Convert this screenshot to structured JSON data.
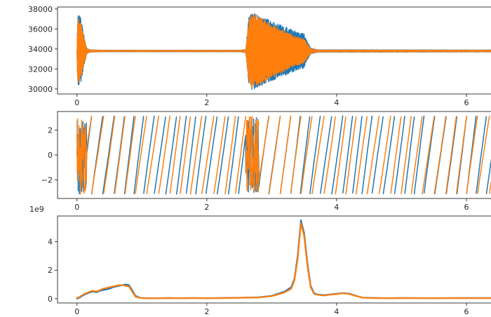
{
  "figure": {
    "background": "#ffffff"
  },
  "colors": {
    "series_1": "#1f77b4",
    "series_2": "#ff7f0e",
    "axis": "#262626"
  },
  "chart_data": [
    {
      "type": "line",
      "title": "",
      "xlabel": "",
      "ylabel": "",
      "xlim": [
        -0.3,
        6.4
      ],
      "ylim": [
        29500,
        38200
      ],
      "xticks": [
        0,
        2,
        4,
        6
      ],
      "xtick_labels": [
        "0",
        "2",
        "4",
        "6"
      ],
      "yticks": [
        30000,
        32000,
        34000,
        36000,
        38000
      ],
      "ytick_labels": [
        "30000",
        "32000",
        "34000",
        "36000",
        "38000"
      ],
      "offset_label": "",
      "grid": false,
      "legend": "none",
      "baseline": 33800,
      "series": [
        {
          "color": "#1f77b4",
          "envelope": {
            "x": [
              0,
              0.01,
              0.05,
              0.1,
              0.15,
              0.2,
              0.4,
              2.5,
              2.6,
              2.65,
              2.7,
              3.0,
              3.3,
              3.5,
              3.55,
              3.6,
              3.7,
              6.4
            ],
            "amp": [
              80,
              3600,
              3500,
              1800,
              300,
              120,
              80,
              80,
              150,
              3500,
              3900,
              3000,
              2200,
              1700,
              900,
              300,
              120,
              100
            ]
          }
        },
        {
          "color": "#ff7f0e",
          "envelope": {
            "x": [
              0,
              0.01,
              0.05,
              0.1,
              0.15,
              0.2,
              0.4,
              2.5,
              2.6,
              2.65,
              2.7,
              3.0,
              3.3,
              3.5,
              3.55,
              3.6,
              3.7,
              6.4
            ],
            "amp": [
              60,
              3300,
              3200,
              1600,
              250,
              100,
              60,
              60,
              120,
              3300,
              3800,
              2700,
              1700,
              1200,
              700,
              250,
              90,
              70
            ]
          }
        }
      ]
    },
    {
      "type": "line",
      "title": "",
      "xlabel": "",
      "ylabel": "",
      "xlim": [
        -0.3,
        6.4
      ],
      "ylim": [
        -3.5,
        3.5
      ],
      "xticks": [
        0,
        2,
        4,
        6
      ],
      "xtick_labels": [
        "0",
        "2",
        "4",
        "6"
      ],
      "yticks": [
        -2,
        0,
        2
      ],
      "ytick_labels": [
        "−2",
        "0",
        "2"
      ],
      "offset_label": "",
      "grid": false,
      "legend": "none",
      "wrap_range": [
        -3.14159,
        3.14159
      ],
      "series": [
        {
          "color": "#1f77b4",
          "sawtooth_period": 0.16,
          "phase": 0.0,
          "wiggle": 0.55
        },
        {
          "color": "#ff7f0e",
          "sawtooth_period": 0.17,
          "phase": 0.9,
          "wiggle": 0.45
        }
      ]
    },
    {
      "type": "line",
      "title": "",
      "xlabel": "",
      "ylabel": "",
      "xlim": [
        -0.3,
        6.4
      ],
      "ylim": [
        -0.3,
        5.8
      ],
      "xticks": [
        0,
        2,
        4,
        6
      ],
      "xtick_labels": [
        "0",
        "2",
        "4",
        "6"
      ],
      "yticks": [
        0,
        2,
        4
      ],
      "ytick_labels": [
        "0",
        "2",
        "4"
      ],
      "offset_label": "1e9",
      "grid": false,
      "legend": "none",
      "series": [
        {
          "color": "#1f77b4",
          "x": [
            0,
            0.05,
            0.1,
            0.15,
            0.2,
            0.25,
            0.3,
            0.35,
            0.4,
            0.45,
            0.5,
            0.55,
            0.6,
            0.65,
            0.7,
            0.75,
            0.8,
            0.85,
            0.9,
            0.95,
            1.0,
            1.2,
            1.4,
            1.6,
            1.8,
            2.0,
            2.2,
            2.4,
            2.6,
            2.8,
            2.9,
            3.0,
            3.1,
            3.2,
            3.3,
            3.35,
            3.4,
            3.45,
            3.5,
            3.55,
            3.6,
            3.65,
            3.7,
            3.8,
            3.9,
            4.0,
            4.1,
            4.2,
            4.3,
            4.4,
            4.6,
            4.8,
            5.0,
            5.5,
            6.0,
            6.4
          ],
          "y": [
            0.0,
            0.1,
            0.25,
            0.35,
            0.45,
            0.5,
            0.45,
            0.55,
            0.6,
            0.65,
            0.7,
            0.8,
            0.85,
            0.9,
            0.95,
            1.0,
            0.95,
            0.6,
            0.2,
            0.1,
            0.05,
            0.03,
            0.05,
            0.04,
            0.05,
            0.04,
            0.05,
            0.06,
            0.08,
            0.1,
            0.15,
            0.2,
            0.35,
            0.5,
            0.8,
            1.4,
            3.0,
            5.5,
            4.6,
            2.5,
            0.9,
            0.4,
            0.3,
            0.25,
            0.3,
            0.35,
            0.4,
            0.35,
            0.2,
            0.08,
            0.05,
            0.04,
            0.05,
            0.04,
            0.05,
            0.05
          ]
        },
        {
          "color": "#ff7f0e",
          "x": [
            0,
            0.05,
            0.1,
            0.15,
            0.2,
            0.25,
            0.3,
            0.35,
            0.4,
            0.45,
            0.5,
            0.55,
            0.6,
            0.65,
            0.7,
            0.75,
            0.8,
            0.85,
            0.9,
            0.95,
            1.0,
            1.2,
            1.4,
            1.6,
            1.8,
            2.0,
            2.2,
            2.4,
            2.6,
            2.8,
            2.9,
            3.0,
            3.1,
            3.2,
            3.3,
            3.35,
            3.4,
            3.45,
            3.5,
            3.55,
            3.6,
            3.65,
            3.7,
            3.8,
            3.9,
            4.0,
            4.1,
            4.2,
            4.3,
            4.4,
            4.6,
            4.8,
            5.0,
            5.5,
            6.0,
            6.4
          ],
          "y": [
            0.05,
            0.15,
            0.3,
            0.4,
            0.5,
            0.55,
            0.5,
            0.6,
            0.7,
            0.75,
            0.8,
            0.85,
            0.9,
            0.95,
            0.95,
            0.9,
            0.85,
            0.5,
            0.15,
            0.08,
            0.04,
            0.03,
            0.04,
            0.04,
            0.04,
            0.04,
            0.04,
            0.05,
            0.07,
            0.09,
            0.13,
            0.18,
            0.3,
            0.45,
            0.7,
            1.3,
            2.8,
            5.3,
            4.4,
            2.3,
            0.8,
            0.35,
            0.28,
            0.22,
            0.28,
            0.32,
            0.38,
            0.32,
            0.18,
            0.07,
            0.04,
            0.04,
            0.04,
            0.04,
            0.04,
            0.04
          ]
        }
      ]
    }
  ]
}
